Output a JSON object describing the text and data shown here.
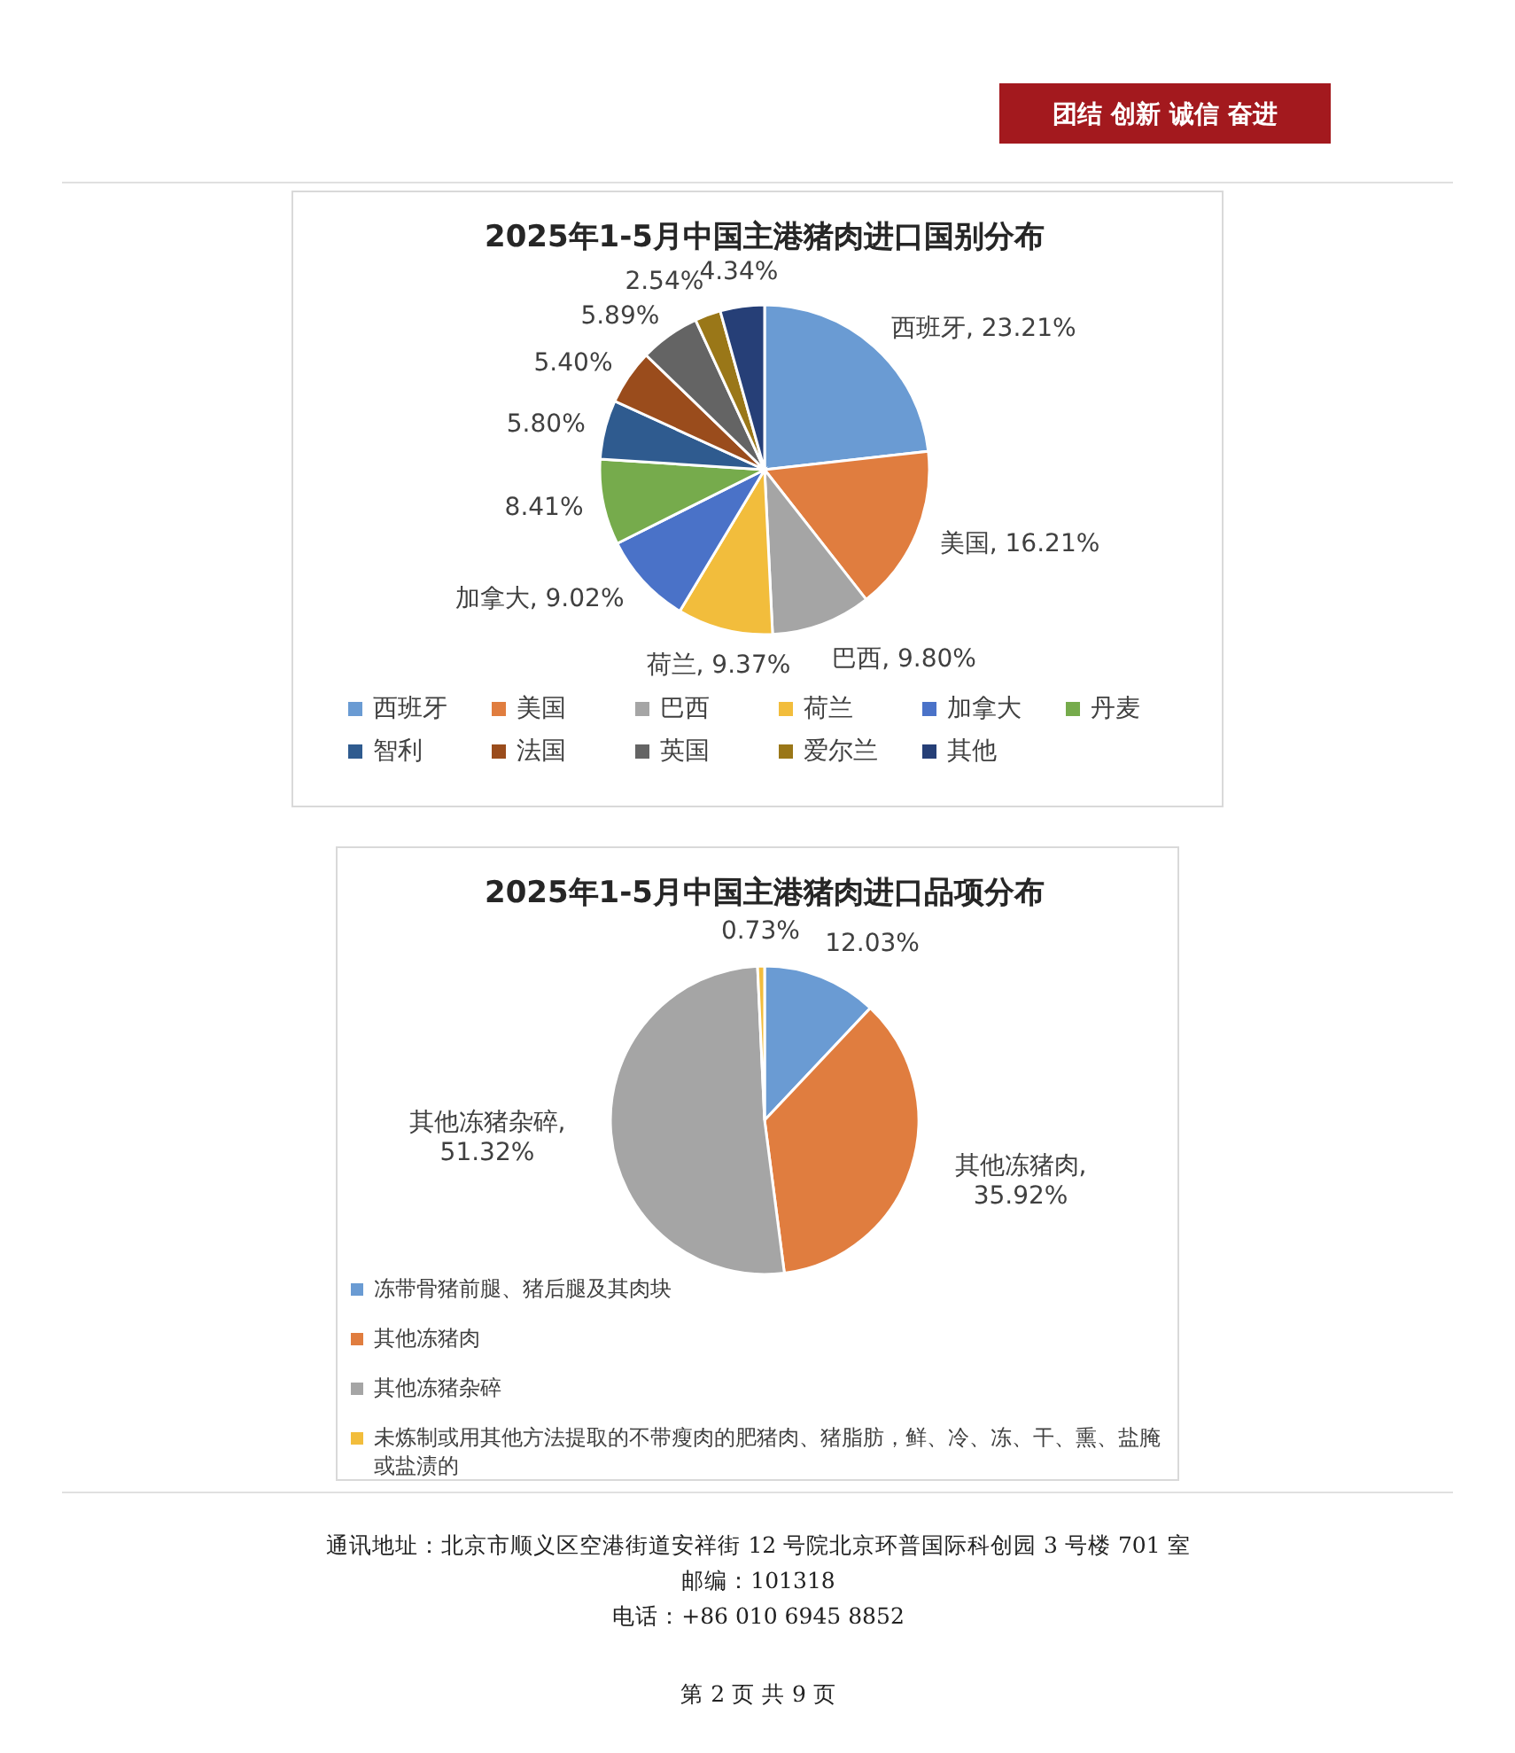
{
  "chart_data": [
    {
      "type": "pie",
      "title": "2025年1-5月中国主港猪肉进口国别分布",
      "categories": [
        "西班牙",
        "美国",
        "巴西",
        "荷兰",
        "加拿大",
        "丹麦",
        "智利",
        "法国",
        "英国",
        "爱尔兰",
        "其他"
      ],
      "values": [
        23.21,
        16.21,
        9.8,
        9.37,
        9.02,
        8.41,
        5.8,
        5.4,
        5.89,
        2.54,
        4.34
      ],
      "colors": [
        "#6a9bd3",
        "#e07d3f",
        "#a5a5a5",
        "#f2bd3c",
        "#4a72c8",
        "#76ab4c",
        "#2f5b8f",
        "#9a4c1c",
        "#646464",
        "#9a7718",
        "#263f77"
      ],
      "value_labels": [
        "西班牙, 23.21%",
        "美国, 16.21%",
        "巴西, 9.80%",
        "荷兰, 9.37%",
        "加拿大, 9.02%",
        "8.41%",
        "5.80%",
        "5.40%",
        "5.89%",
        "2.54%",
        "4.34%"
      ],
      "legend": "bottom",
      "annotations": [
        "团结  创新  诚信  奋进"
      ]
    },
    {
      "type": "pie",
      "title": "2025年1-5月中国主港猪肉进口品项分布",
      "categories": [
        "冻带骨猪前腿、猪后腿及其肉块",
        "其他冻猪肉",
        "其他冻猪杂碎",
        "未炼制或用其他方法提取的不带瘦肉的肥猪肉、猪脂肪，鲜、冷、冻、干、熏、盐腌或盐渍的"
      ],
      "values": [
        12.03,
        35.92,
        51.32,
        0.73
      ],
      "colors": [
        "#6a9bd3",
        "#e07d3f",
        "#a5a5a5",
        "#f2bd3c"
      ],
      "value_labels": [
        "12.03%",
        "其他冻猪肉,\n35.92%",
        "其他冻猪杂碎,\n51.32%",
        "0.73%"
      ],
      "legend": "bottom",
      "annotations": [
        "通讯地址：北京市顺义区空港街道安祥街 12 号院北京环普国际科创园 3 号楼 701 室",
        "邮编：101318",
        "电话：+86  010  6945  8852",
        "第 2 页 共 9 页"
      ]
    }
  ]
}
